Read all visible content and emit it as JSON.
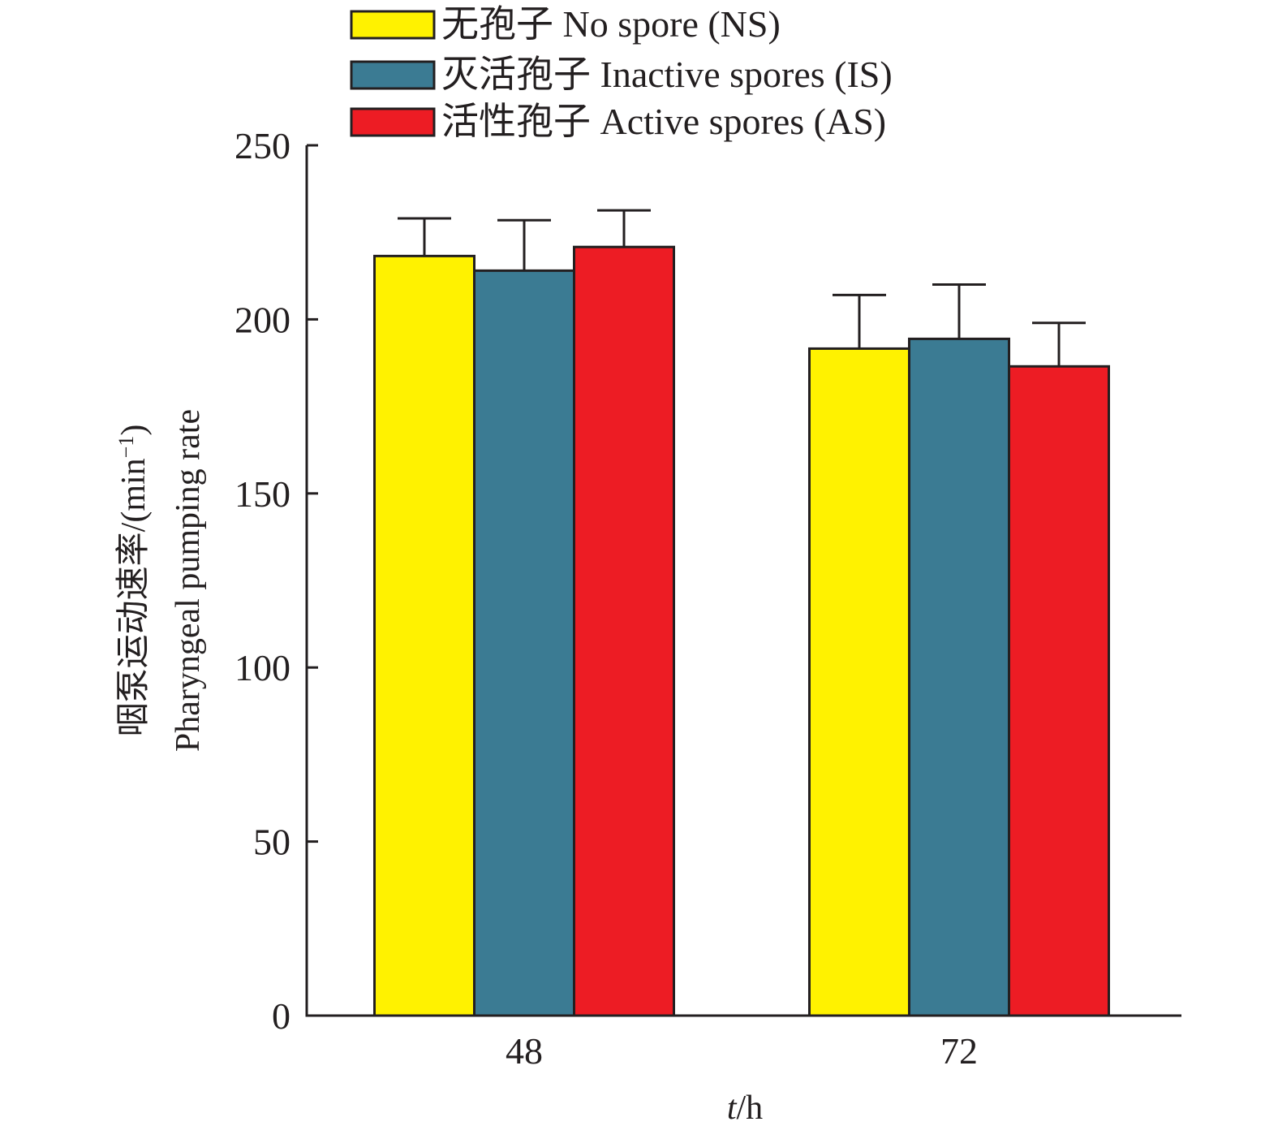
{
  "chart_data": {
    "type": "bar",
    "title": "",
    "xlabel_italic": "t",
    "xlabel_rest": "/h",
    "ylabel_cn": "咽泵运动速率/(min",
    "ylabel_sup": "−1",
    "ylabel_close": ")",
    "ylabel_en": "Pharyngeal pumping rate",
    "categories": [
      "48",
      "72"
    ],
    "ylim": [
      0,
      250
    ],
    "yticks": [
      0,
      50,
      100,
      150,
      200,
      250
    ],
    "ytick_labels": [
      "0",
      "50",
      "100",
      "150",
      "200",
      "250"
    ],
    "grid": false,
    "legend_position": "top",
    "series": [
      {
        "name": "无孢子 No spore (NS)",
        "color": "#fff200",
        "values": [
          218.2,
          191.6
        ],
        "error_upper": [
          229.0,
          207.0
        ]
      },
      {
        "name": "灭活孢子 Inactive spores (IS)",
        "color": "#3b7b93",
        "values": [
          214.0,
          194.4
        ],
        "error_upper": [
          228.5,
          210.0
        ]
      },
      {
        "name": "活性孢子 Active spores (AS)",
        "color": "#ed1c24",
        "values": [
          220.8,
          186.5
        ],
        "error_upper": [
          231.3,
          199.0
        ]
      }
    ]
  }
}
